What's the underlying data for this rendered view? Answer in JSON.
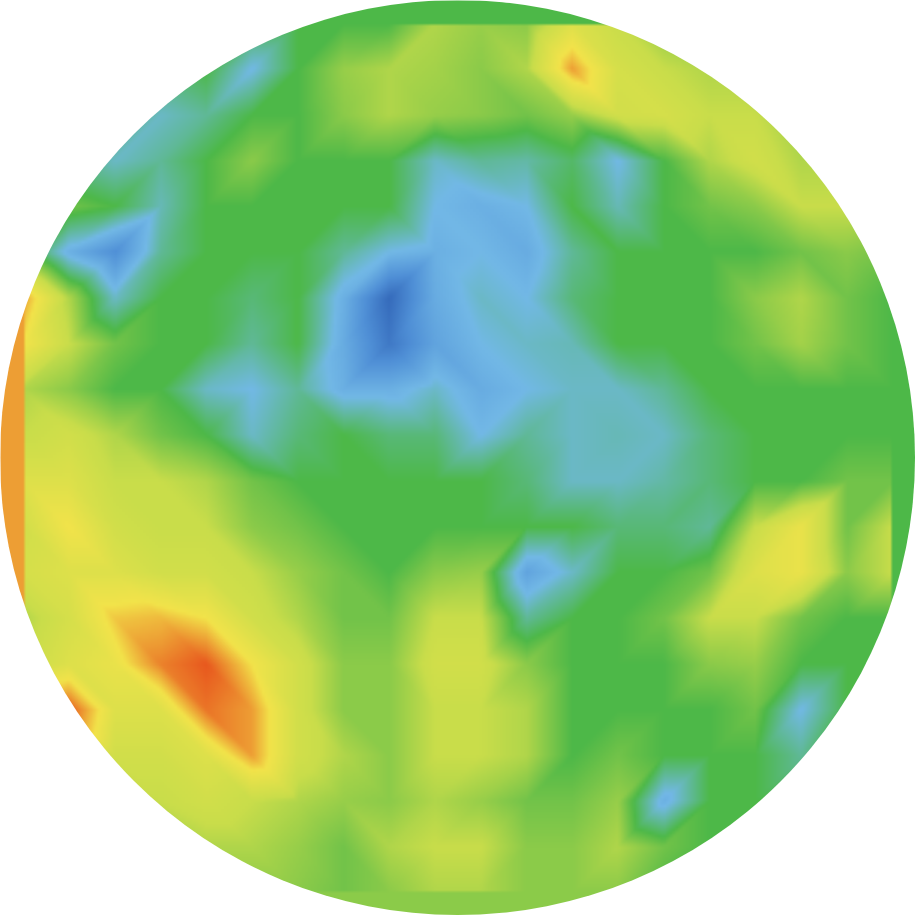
{
  "chart_data": {
    "type": "heatmap",
    "zlim": [
      -3,
      3
    ],
    "tick_labels": false,
    "cells": [
      [
        null,
        null,
        null,
        null,
        null,
        0,
        0,
        0,
        0,
        0.8,
        0.6,
        0.5,
        1.5,
        1,
        0.5,
        null,
        null,
        null,
        null,
        null
      ],
      [
        null,
        null,
        null,
        0,
        0,
        -1,
        0,
        0.6,
        0.8,
        0.7,
        0.5,
        0.8,
        2.5,
        1.3,
        1,
        0.8,
        0.5,
        null,
        null,
        null
      ],
      [
        null,
        null,
        0,
        -0.8,
        -0.5,
        0,
        0,
        0.5,
        0.8,
        0.6,
        0.5,
        0.3,
        0.6,
        1.2,
        1.3,
        1,
        1,
        0.6,
        null,
        null
      ],
      [
        null,
        0,
        -0.8,
        -0.5,
        0,
        0.5,
        0,
        0,
        0,
        -0.8,
        -0.5,
        -0.6,
        -0.2,
        -1,
        0,
        0.8,
        1.2,
        0.8,
        1,
        null
      ],
      [
        null,
        0.3,
        0,
        -0.7,
        0,
        0,
        0,
        0,
        0,
        -1,
        -1.2,
        -1,
        0,
        -0.7,
        0,
        0.3,
        0.5,
        1,
        1,
        null
      ],
      [
        0.3,
        -1.2,
        -2,
        -0.5,
        0,
        0,
        0,
        -0.5,
        -1,
        -1.2,
        -1,
        -1.3,
        -0.5,
        0,
        0,
        0,
        0,
        0.3,
        0.5,
        0.3
      ],
      [
        2.5,
        0.8,
        -0.8,
        0,
        0,
        -0.3,
        0,
        -1.2,
        -2.8,
        -1.3,
        -0.8,
        -1,
        -0.3,
        0,
        0,
        0,
        0.5,
        0.8,
        0.3,
        0
      ],
      [
        2,
        1,
        0.3,
        0,
        0,
        -0.5,
        0,
        -1.3,
        -2.5,
        -1.5,
        -1,
        -0.8,
        -0.7,
        0,
        0,
        0,
        0.3,
        0.7,
        0.3,
        0
      ],
      [
        0.8,
        0.5,
        0,
        0,
        -0.8,
        -1,
        -0.5,
        -1.2,
        -1.2,
        -0.8,
        -1.3,
        -1,
        -0.8,
        -0.8,
        -0.5,
        0,
        0,
        0,
        0,
        0
      ],
      [
        1,
        1.2,
        0.8,
        0.3,
        0,
        -0.8,
        -0.3,
        0,
        -0.3,
        -0.3,
        -1,
        -0.5,
        -0.8,
        -0.7,
        -0.8,
        -0.3,
        0,
        0,
        0,
        0
      ],
      [
        1.5,
        1.5,
        1,
        1,
        0.8,
        0.3,
        0,
        0,
        0,
        0,
        0,
        -0.3,
        -0.8,
        -0.8,
        -0.6,
        -0.3,
        0,
        0,
        0.3,
        0.3
      ],
      [
        1.2,
        2,
        1.2,
        1,
        1,
        0.5,
        0.3,
        0,
        0,
        0,
        0,
        0,
        0,
        -0.3,
        -0.3,
        -0.5,
        1,
        1.8,
        0.3,
        1
      ],
      [
        1.3,
        1.5,
        1.5,
        1.2,
        1.2,
        1,
        0.6,
        0.3,
        0,
        0.5,
        0.6,
        -1.5,
        -0.8,
        0,
        0,
        0.3,
        1.5,
        1.8,
        0.5,
        1
      ],
      [
        0.8,
        1.3,
        2.2,
        2.3,
        2,
        1.2,
        0.8,
        0.3,
        0.3,
        1,
        1,
        -0.5,
        0,
        0,
        0.3,
        1,
        1,
        0.3,
        0,
        0
      ],
      [
        1,
        1.5,
        1.8,
        2.7,
        3,
        2,
        1.2,
        0.5,
        0.5,
        1.2,
        1.2,
        0.5,
        0,
        0,
        0,
        0.5,
        0.6,
        0,
        0,
        0
      ],
      [
        null,
        3,
        1.5,
        1.5,
        2.8,
        2.5,
        1.2,
        0.5,
        0.5,
        1,
        1,
        0.8,
        0,
        0,
        0,
        0,
        0.3,
        -1,
        0,
        null
      ],
      [
        null,
        1,
        1.2,
        1.2,
        1.5,
        2.5,
        1.2,
        0.8,
        0.5,
        1,
        1,
        0.8,
        0,
        0.3,
        0,
        0,
        0,
        -0.5,
        0,
        null
      ],
      [
        null,
        null,
        0.8,
        1,
        1.2,
        1,
        0.8,
        0.6,
        0.5,
        0.8,
        0.6,
        0.3,
        0.3,
        0.6,
        -1.2,
        0,
        0,
        0,
        null,
        null
      ],
      [
        null,
        null,
        null,
        0.5,
        0.8,
        0.8,
        0.6,
        0.3,
        0.8,
        1,
        1,
        0.5,
        0.5,
        0.8,
        0.3,
        0,
        0,
        null,
        null,
        null
      ],
      [
        null,
        null,
        null,
        null,
        null,
        0.5,
        0.5,
        0.3,
        0.5,
        0.8,
        0.8,
        0.5,
        0.5,
        0.5,
        0,
        null,
        null,
        null,
        null,
        null
      ]
    ]
  }
}
